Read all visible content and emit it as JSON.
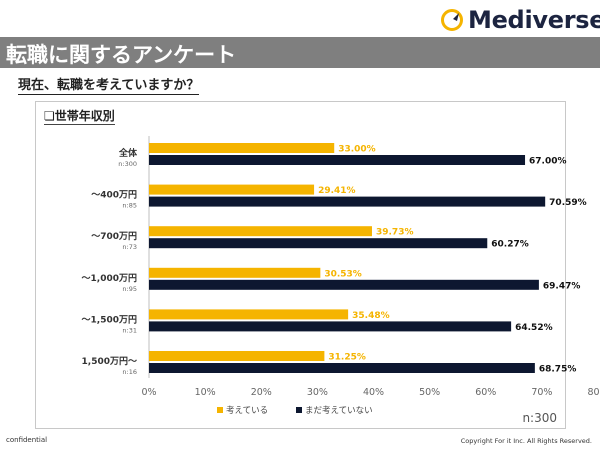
{
  "brand": {
    "name": "Mediverse"
  },
  "header": {
    "title": "転職に関するアンケート"
  },
  "question": "現在、転職を考えていますか？",
  "chart_box": {
    "title": "❏世帯年収別",
    "sample_note": "n:300"
  },
  "footer": {
    "left": "confidential",
    "right": "Copyright For it Inc. All Rights Reserved."
  },
  "colors": {
    "considering": "#f5b400",
    "not_considering": "#0d1730",
    "title_bar": "#7f7f7f",
    "logo_accent": "#f5b400"
  },
  "chart_data": {
    "type": "bar",
    "orientation": "horizontal",
    "title": "❏世帯年収別",
    "categories": [
      "全体",
      "～400万円",
      "～700万円",
      "～1,000万円",
      "～1,500万円",
      "1,500万円～"
    ],
    "sample_sizes": [
      "n:300",
      "n:85",
      "n:73",
      "n:95",
      "n:31",
      "n:16"
    ],
    "series": [
      {
        "name": "考えている",
        "values": [
          33.0,
          29.41,
          39.73,
          30.53,
          35.48,
          31.25
        ],
        "labels": [
          "33.00%",
          "29.41%",
          "39.73%",
          "30.53%",
          "35.48%",
          "31.25%"
        ],
        "color": "#f5b400"
      },
      {
        "name": "まだ考えていない",
        "values": [
          67.0,
          70.59,
          60.27,
          69.47,
          64.52,
          68.75
        ],
        "labels": [
          "67.00%",
          "70.59%",
          "60.27%",
          "69.47%",
          "64.52%",
          "68.75%"
        ],
        "color": "#0d1730"
      }
    ],
    "xlim": [
      0,
      80
    ],
    "xticks": [
      "0%",
      "10%",
      "20%",
      "30%",
      "40%",
      "50%",
      "60%",
      "70%",
      "80%"
    ],
    "grid": false,
    "legend": "bottom"
  }
}
